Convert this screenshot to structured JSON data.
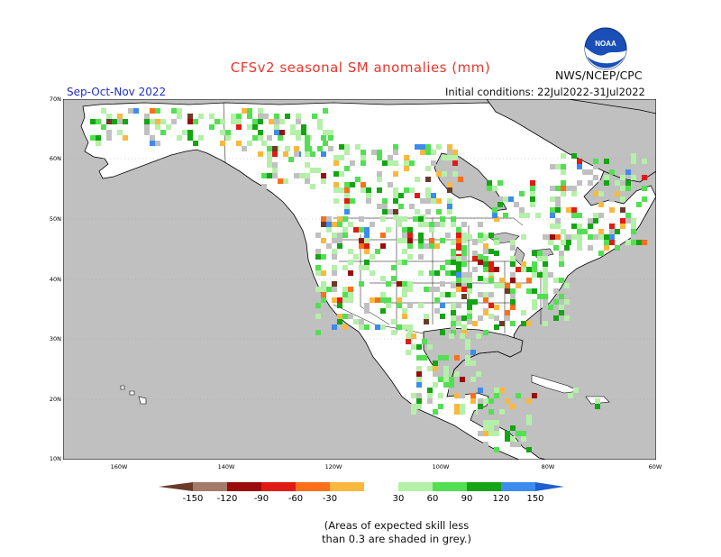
{
  "header": {
    "title": "CFSv2 seasonal SM anomalies (mm)",
    "organization": "NWS/NCEP/CPC",
    "logo_text": "NOAA",
    "season": "Sep-Oct-Nov 2022",
    "initial_conditions": "Initial conditions: 22Jul2022-31Jul2022"
  },
  "map": {
    "lat_labels": [
      "70N",
      "60N",
      "50N",
      "40N",
      "30N",
      "20N",
      "10N"
    ],
    "lon_labels": [
      "160W",
      "140W",
      "120W",
      "100W",
      "80W",
      "60W"
    ],
    "colors": {
      "ocean": "#c0c0c0",
      "land": "#ffffff",
      "coast": "#000000",
      "low_skill": "#c0c0c0"
    }
  },
  "colorbar": {
    "labels": [
      "-150",
      "-120",
      "-90",
      "-60",
      "-30",
      "30",
      "60",
      "90",
      "120",
      "150"
    ],
    "colors": [
      "#6b3a2a",
      "#a47a6a",
      "#9b0c0c",
      "#e01b16",
      "#fb6f1b",
      "#fbb83c",
      "#ffffff",
      "#b4f0a8",
      "#52e052",
      "#14a414",
      "#0a7d0a",
      "#3c8cf0",
      "#1e5fd0"
    ]
  },
  "footnote": {
    "line1": "(Areas of expected skill less",
    "line2": "than 0.3 are shaded in grey.)"
  }
}
